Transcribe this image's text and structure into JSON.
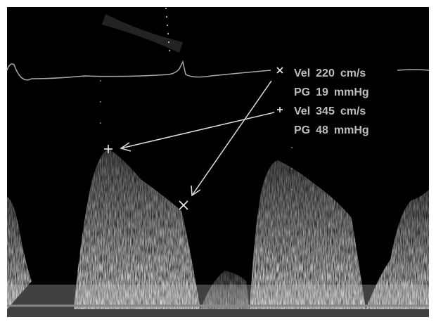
{
  "measurements": [
    {
      "label": "Vel",
      "value": 220,
      "unit": "cm/s"
    },
    {
      "label": "PG",
      "value": 19,
      "unit": "mmHg"
    },
    {
      "label": "Vel",
      "value": 345,
      "unit": "cm/s"
    },
    {
      "label": "PG",
      "value": 48,
      "unit": "mmHg"
    }
  ]
}
